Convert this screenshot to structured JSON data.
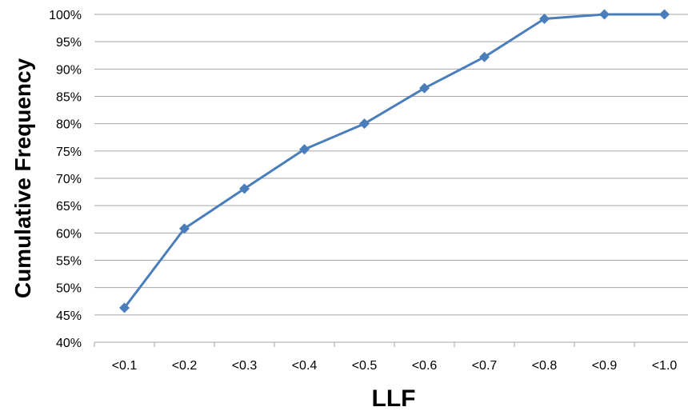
{
  "chart_data": {
    "type": "line",
    "title": "",
    "xlabel": "LLF",
    "ylabel": "Cumulative Frequency",
    "categories": [
      "<0.1",
      "<0.2",
      "<0.3",
      "<0.4",
      "<0.5",
      "<0.6",
      "<0.7",
      "<0.8",
      "<0.9",
      "<1.0"
    ],
    "series": [
      {
        "values": [
          46.3,
          60.8,
          68.1,
          75.3,
          80.0,
          86.5,
          92.2,
          99.2,
          100.0,
          100.0
        ],
        "color": "#4a7ebb",
        "marker": "diamond"
      }
    ],
    "ylim": [
      40,
      100
    ],
    "yticks": [
      40,
      45,
      50,
      55,
      60,
      65,
      70,
      75,
      80,
      85,
      90,
      95,
      100
    ],
    "ytick_labels": [
      "40%",
      "45%",
      "50%",
      "55%",
      "60%",
      "65%",
      "70%",
      "75%",
      "80%",
      "85%",
      "90%",
      "95%",
      "100%"
    ],
    "y_unit": "%",
    "grid": true,
    "legend": "none"
  }
}
